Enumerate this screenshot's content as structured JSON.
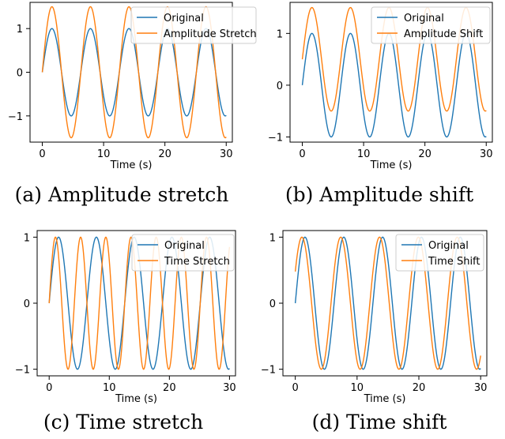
{
  "colors": {
    "series_1": "#1f77b4",
    "series_2": "#ff7f0e",
    "axes": "#000000",
    "background": "#ffffff"
  },
  "captions": [
    "(a) Amplitude stretch",
    "(b) Amplitude shift",
    "(c) Time stretch",
    "(d) Time shift"
  ],
  "chart_data": [
    {
      "type": "line",
      "title": "",
      "caption": "(a) Amplitude stretch",
      "xlabel": "Time (s)",
      "ylabel": "",
      "xlim": [
        -2,
        31
      ],
      "ylim": [
        -1.6,
        1.6
      ],
      "xticks": [
        0,
        10,
        20,
        30
      ],
      "yticks": [
        -1,
        0,
        1
      ],
      "grid": false,
      "legend": "top-right",
      "series": [
        {
          "name": "Original",
          "color": "#1f77b4",
          "function": "sin",
          "amplitude": 1,
          "offset": 0,
          "period": 6.2832,
          "phase": 0,
          "x_range": [
            0,
            30
          ]
        },
        {
          "name": "Amplitude Stretch",
          "color": "#ff7f0e",
          "function": "sin",
          "amplitude": 1.5,
          "offset": 0,
          "period": 6.2832,
          "phase": 0,
          "x_range": [
            0,
            30
          ]
        }
      ]
    },
    {
      "type": "line",
      "title": "",
      "caption": "(b) Amplitude shift",
      "xlabel": "Time (s)",
      "ylabel": "",
      "xlim": [
        -2,
        31
      ],
      "ylim": [
        -1.1,
        1.6
      ],
      "xticks": [
        0,
        10,
        20,
        30
      ],
      "yticks": [
        -1,
        0,
        1
      ],
      "grid": false,
      "legend": "top-right",
      "series": [
        {
          "name": "Original",
          "color": "#1f77b4",
          "function": "sin",
          "amplitude": 1,
          "offset": 0,
          "period": 6.2832,
          "phase": 0,
          "x_range": [
            0,
            30
          ]
        },
        {
          "name": "Amplitude Shift",
          "color": "#ff7f0e",
          "function": "sin",
          "amplitude": 1,
          "offset": 0.5,
          "period": 6.2832,
          "phase": 0,
          "x_range": [
            0,
            30
          ]
        }
      ]
    },
    {
      "type": "line",
      "title": "",
      "caption": "(c) Time stretch",
      "xlabel": "Time (s)",
      "ylabel": "",
      "xlim": [
        -2,
        31
      ],
      "ylim": [
        -1.1,
        1.1
      ],
      "xticks": [
        0,
        10,
        20,
        30
      ],
      "yticks": [
        -1,
        0,
        1
      ],
      "grid": false,
      "legend": "top-right",
      "series": [
        {
          "name": "Original",
          "color": "#1f77b4",
          "function": "sin",
          "amplitude": 1,
          "offset": 0,
          "period": 6.2832,
          "phase": 0,
          "x_range": [
            0,
            30
          ]
        },
        {
          "name": "Time Stretch",
          "color": "#ff7f0e",
          "function": "sin",
          "amplitude": 1,
          "offset": 0,
          "period": 4.1888,
          "phase": 0,
          "x_range": [
            0,
            30
          ]
        }
      ]
    },
    {
      "type": "line",
      "title": "",
      "caption": "(d) Time shift",
      "xlabel": "Time (s)",
      "ylabel": "",
      "xlim": [
        -2,
        31
      ],
      "ylim": [
        -1.1,
        1.1
      ],
      "xticks": [
        0,
        10,
        20,
        30
      ],
      "yticks": [
        -1,
        0,
        1
      ],
      "grid": false,
      "legend": "top-right",
      "series": [
        {
          "name": "Original",
          "color": "#1f77b4",
          "function": "sin",
          "amplitude": 1,
          "offset": 0,
          "period": 6.2832,
          "phase": 0,
          "x_range": [
            0,
            30
          ]
        },
        {
          "name": "Time Shift",
          "color": "#ff7f0e",
          "function": "sin",
          "amplitude": 1,
          "offset": 0,
          "period": 6.2832,
          "phase": 0.5,
          "x_range": [
            0,
            30
          ]
        }
      ]
    }
  ]
}
